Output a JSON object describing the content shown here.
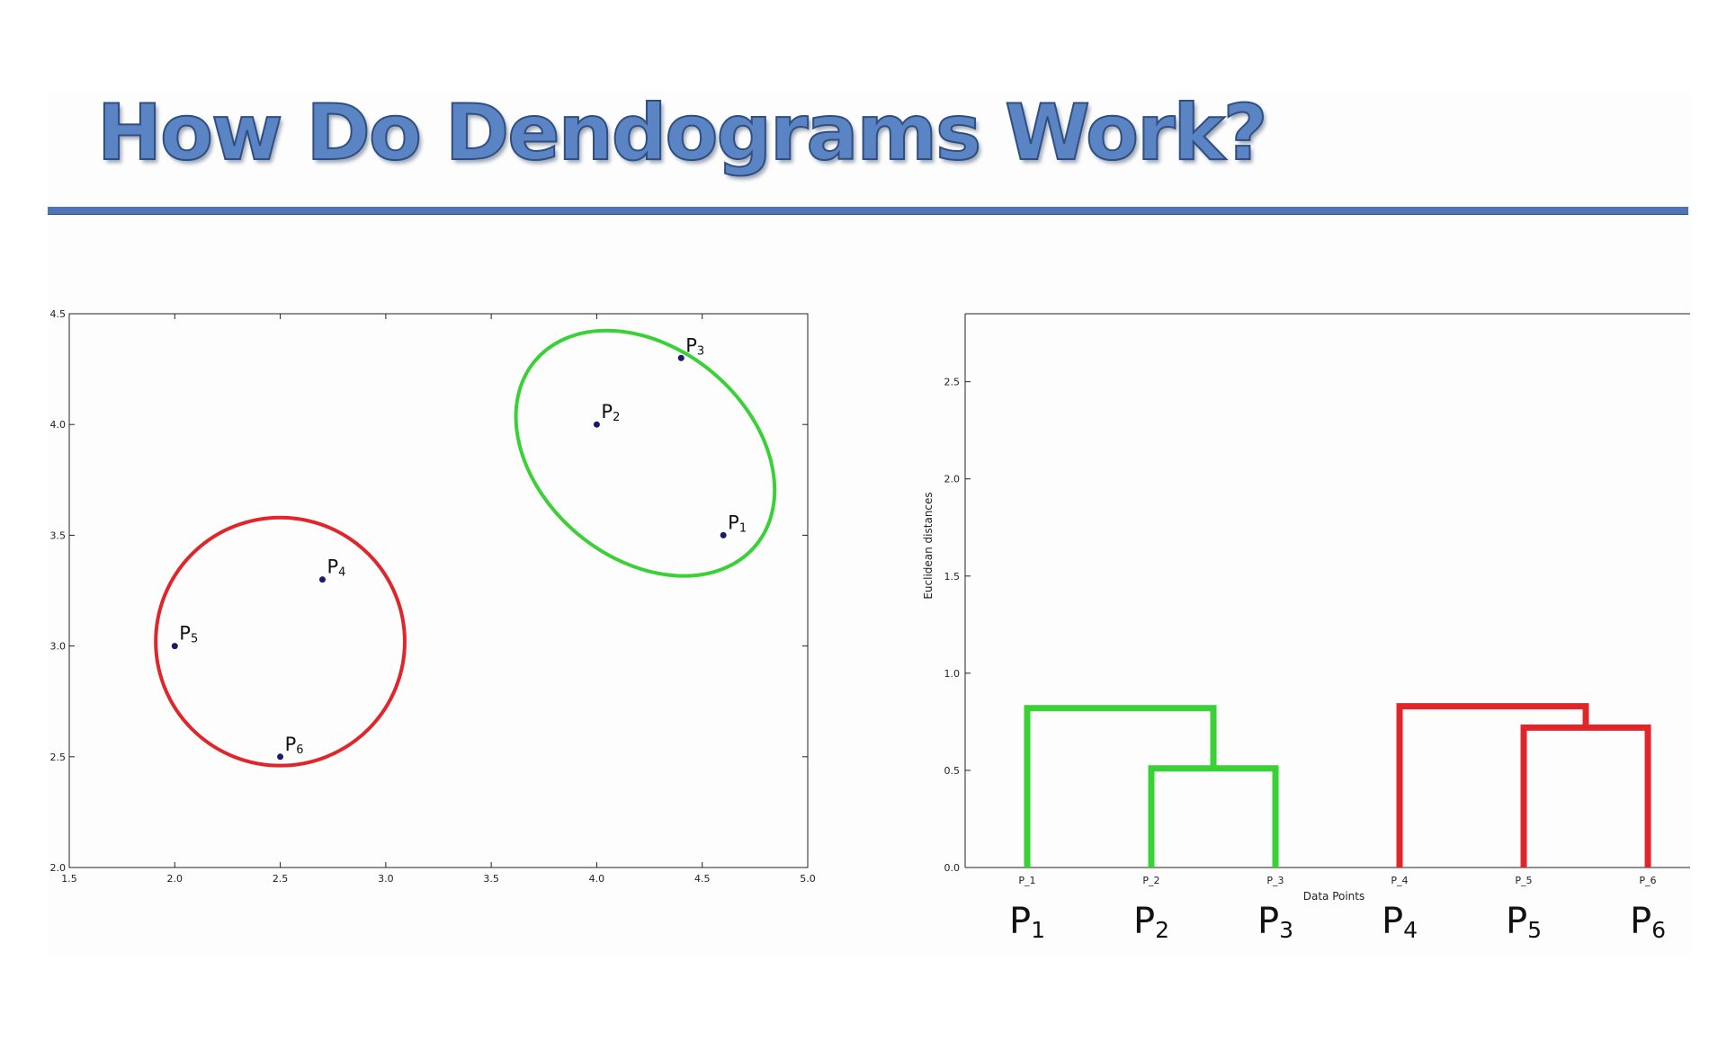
{
  "slide": {
    "title": "How Do Dendograms Work?",
    "colors": {
      "title_fill": "#5b84c4",
      "title_rule": "#4f74b8",
      "cluster_a": "#39d135",
      "cluster_b": "#e0262b",
      "point": "#1a1a6a"
    }
  },
  "chart_data": [
    {
      "type": "scatter",
      "title": "",
      "xlabel": "",
      "ylabel": "",
      "xlim": [
        1.5,
        5.0
      ],
      "ylim": [
        2.0,
        4.5
      ],
      "x_ticks": [
        "1.5",
        "2.0",
        "2.5",
        "3.0",
        "3.5",
        "4.0",
        "4.5",
        "5.0"
      ],
      "y_ticks": [
        "2.0",
        "2.5",
        "3.0",
        "3.5",
        "4.0",
        "4.5"
      ],
      "points": [
        {
          "name": "P",
          "sub": "1",
          "x": 4.6,
          "y": 3.5
        },
        {
          "name": "P",
          "sub": "2",
          "x": 4.0,
          "y": 4.0
        },
        {
          "name": "P",
          "sub": "3",
          "x": 4.4,
          "y": 4.3
        },
        {
          "name": "P",
          "sub": "4",
          "x": 2.7,
          "y": 3.3
        },
        {
          "name": "P",
          "sub": "5",
          "x": 2.0,
          "y": 3.0
        },
        {
          "name": "P",
          "sub": "6",
          "x": 2.5,
          "y": 2.5
        }
      ],
      "clusters": [
        {
          "members": [
            "P1",
            "P2",
            "P3"
          ],
          "color": "#39d135",
          "shape": "ellipse",
          "center": [
            4.23,
            3.87
          ],
          "radii": [
            0.62,
            0.62
          ],
          "rotation_deg": 40
        },
        {
          "members": [
            "P4",
            "P5",
            "P6"
          ],
          "color": "#e0262b",
          "shape": "circle",
          "center": [
            2.5,
            3.02
          ],
          "radii": [
            0.59,
            0.56
          ],
          "rotation_deg": 0
        }
      ],
      "grid": false
    },
    {
      "type": "dendrogram",
      "title": "",
      "xlabel": "Data Points",
      "ylabel": "Euclidean distances",
      "ylim": [
        0,
        2.85
      ],
      "y_ticks": [
        "0.0",
        "0.5",
        "1.0",
        "1.5",
        "2.0",
        "2.5"
      ],
      "leaves": [
        "P_1",
        "P_2",
        "P_3",
        "P_4",
        "P_5",
        "P_6"
      ],
      "leaf_big_labels": [
        {
          "name": "P",
          "sub": "1"
        },
        {
          "name": "P",
          "sub": "2"
        },
        {
          "name": "P",
          "sub": "3"
        },
        {
          "name": "P",
          "sub": "4"
        },
        {
          "name": "P",
          "sub": "5"
        },
        {
          "name": "P",
          "sub": "6"
        }
      ],
      "links": [
        {
          "left": "P_2",
          "right": "P_3",
          "height": 0.51,
          "color": "#39d135"
        },
        {
          "left": "P_1",
          "right": "P_2+P_3",
          "height": 0.82,
          "color": "#39d135"
        },
        {
          "left": "P_5",
          "right": "P_6",
          "height": 0.72,
          "color": "#e0262b"
        },
        {
          "left": "P_4",
          "right": "P_5+P_6",
          "height": 0.83,
          "color": "#e0262b"
        }
      ]
    }
  ]
}
